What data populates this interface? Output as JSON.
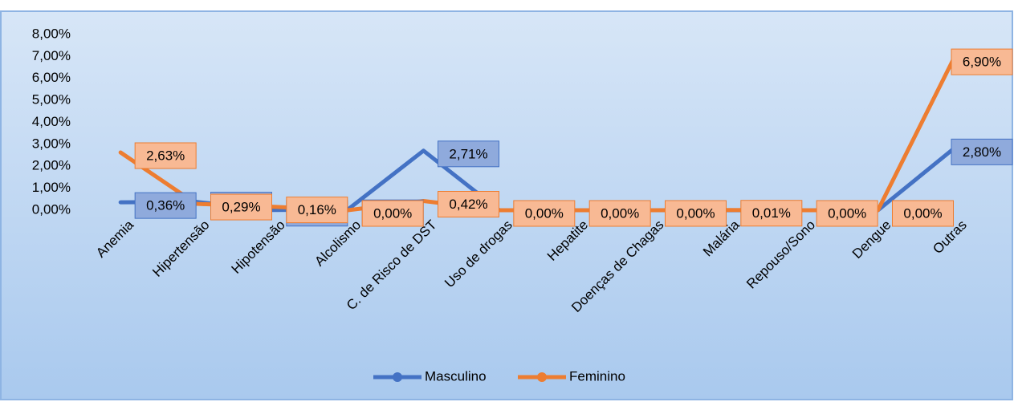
{
  "chart_data": {
    "type": "line",
    "categories": [
      "Anemia",
      "Hipertensão",
      "Hipotensão",
      "Alcolismo",
      "C. de Risco de DST",
      "Uso de drogas",
      "Hepatite",
      "Doenças de Chagas",
      "Malária",
      "Repouso/Sono",
      "Dengue",
      "Outras"
    ],
    "series": [
      {
        "name": "Masculino",
        "color": "#4472c4",
        "values": [
          0.36,
          0.38,
          0.01,
          0.03,
          2.71,
          0,
          0,
          0,
          0,
          0,
          0,
          2.8
        ],
        "value_labels": [
          "0,36%",
          "0,38%",
          "0,01%",
          "0,03%",
          "2,71%",
          null,
          null,
          null,
          null,
          null,
          null,
          "2,80%"
        ]
      },
      {
        "name": "Feminino",
        "color": "#ed7d31",
        "values": [
          2.63,
          0.29,
          0.16,
          0.0,
          0.42,
          0.0,
          0.0,
          0.0,
          0.01,
          0.0,
          0.0,
          6.9
        ],
        "value_labels": [
          "2,63%",
          "0,29%",
          "0,16%",
          "0,00%",
          "0,42%",
          "0,00%",
          "0,00%",
          "0,00%",
          "0,01%",
          "0,00%",
          "0,00%",
          "6,90%"
        ]
      }
    ],
    "ylim": [
      0,
      8
    ],
    "yticks": [
      {
        "value": 0,
        "label": "0,00%"
      },
      {
        "value": 1,
        "label": "1,00%"
      },
      {
        "value": 2,
        "label": "2,00%"
      },
      {
        "value": 3,
        "label": "3,00%"
      },
      {
        "value": 4,
        "label": "4,00%"
      },
      {
        "value": 5,
        "label": "5,00%"
      },
      {
        "value": 6,
        "label": "6,00%"
      },
      {
        "value": 7,
        "label": "7,00%"
      },
      {
        "value": 8,
        "label": "8,00%"
      }
    ],
    "legend": "bottom"
  }
}
